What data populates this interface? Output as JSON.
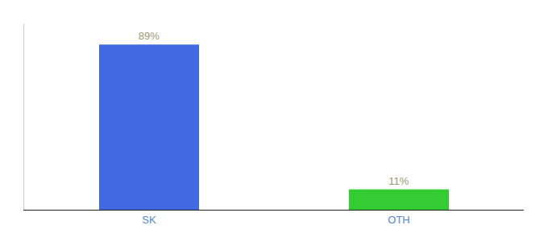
{
  "chart_data": {
    "type": "bar",
    "categories": [
      "SK",
      "OTH"
    ],
    "values": [
      89,
      11
    ],
    "value_labels": [
      "89%",
      "11%"
    ],
    "colors": [
      "#4169e1",
      "#33cc33"
    ],
    "ylim": [
      0,
      100
    ],
    "data_labels": true,
    "tick_labels": "x",
    "grid": false
  }
}
